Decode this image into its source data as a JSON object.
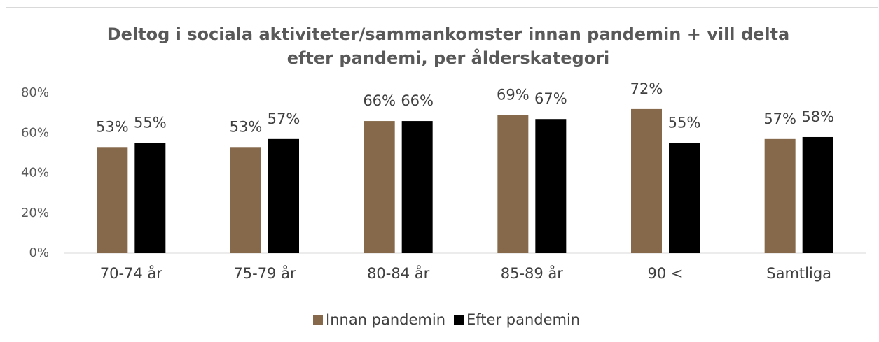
{
  "chart_data": {
    "type": "bar",
    "title": [
      "Deltog i sociala aktiviteter/sammankomster innan pandemin + vill delta",
      "efter pandemi, per ålderskategori"
    ],
    "categories": [
      "70-74 år",
      "75-79 år",
      "80-84 år",
      "85-89 år",
      "90 <",
      "Samtliga"
    ],
    "series": [
      {
        "name": "Innan pandemin",
        "color": "#85694a",
        "values": [
          53,
          53,
          66,
          69,
          72,
          57
        ],
        "value_labels": [
          "53%",
          "53%",
          "66%",
          "69%",
          "72%",
          "57%"
        ]
      },
      {
        "name": "Efter pandemin",
        "color": "#000000",
        "values": [
          55,
          57,
          66,
          67,
          55,
          58
        ],
        "value_labels": [
          "55%",
          "57%",
          "66%",
          "67%",
          "55%",
          "58%"
        ]
      }
    ],
    "ylim": [
      0,
      80
    ],
    "yticks": [
      {
        "value": 0,
        "label": "0%"
      },
      {
        "value": 20,
        "label": "20%"
      },
      {
        "value": 40,
        "label": "40%"
      },
      {
        "value": 60,
        "label": "60%"
      },
      {
        "value": 80,
        "label": "80%"
      }
    ],
    "grid": false,
    "legend": "bottom"
  }
}
